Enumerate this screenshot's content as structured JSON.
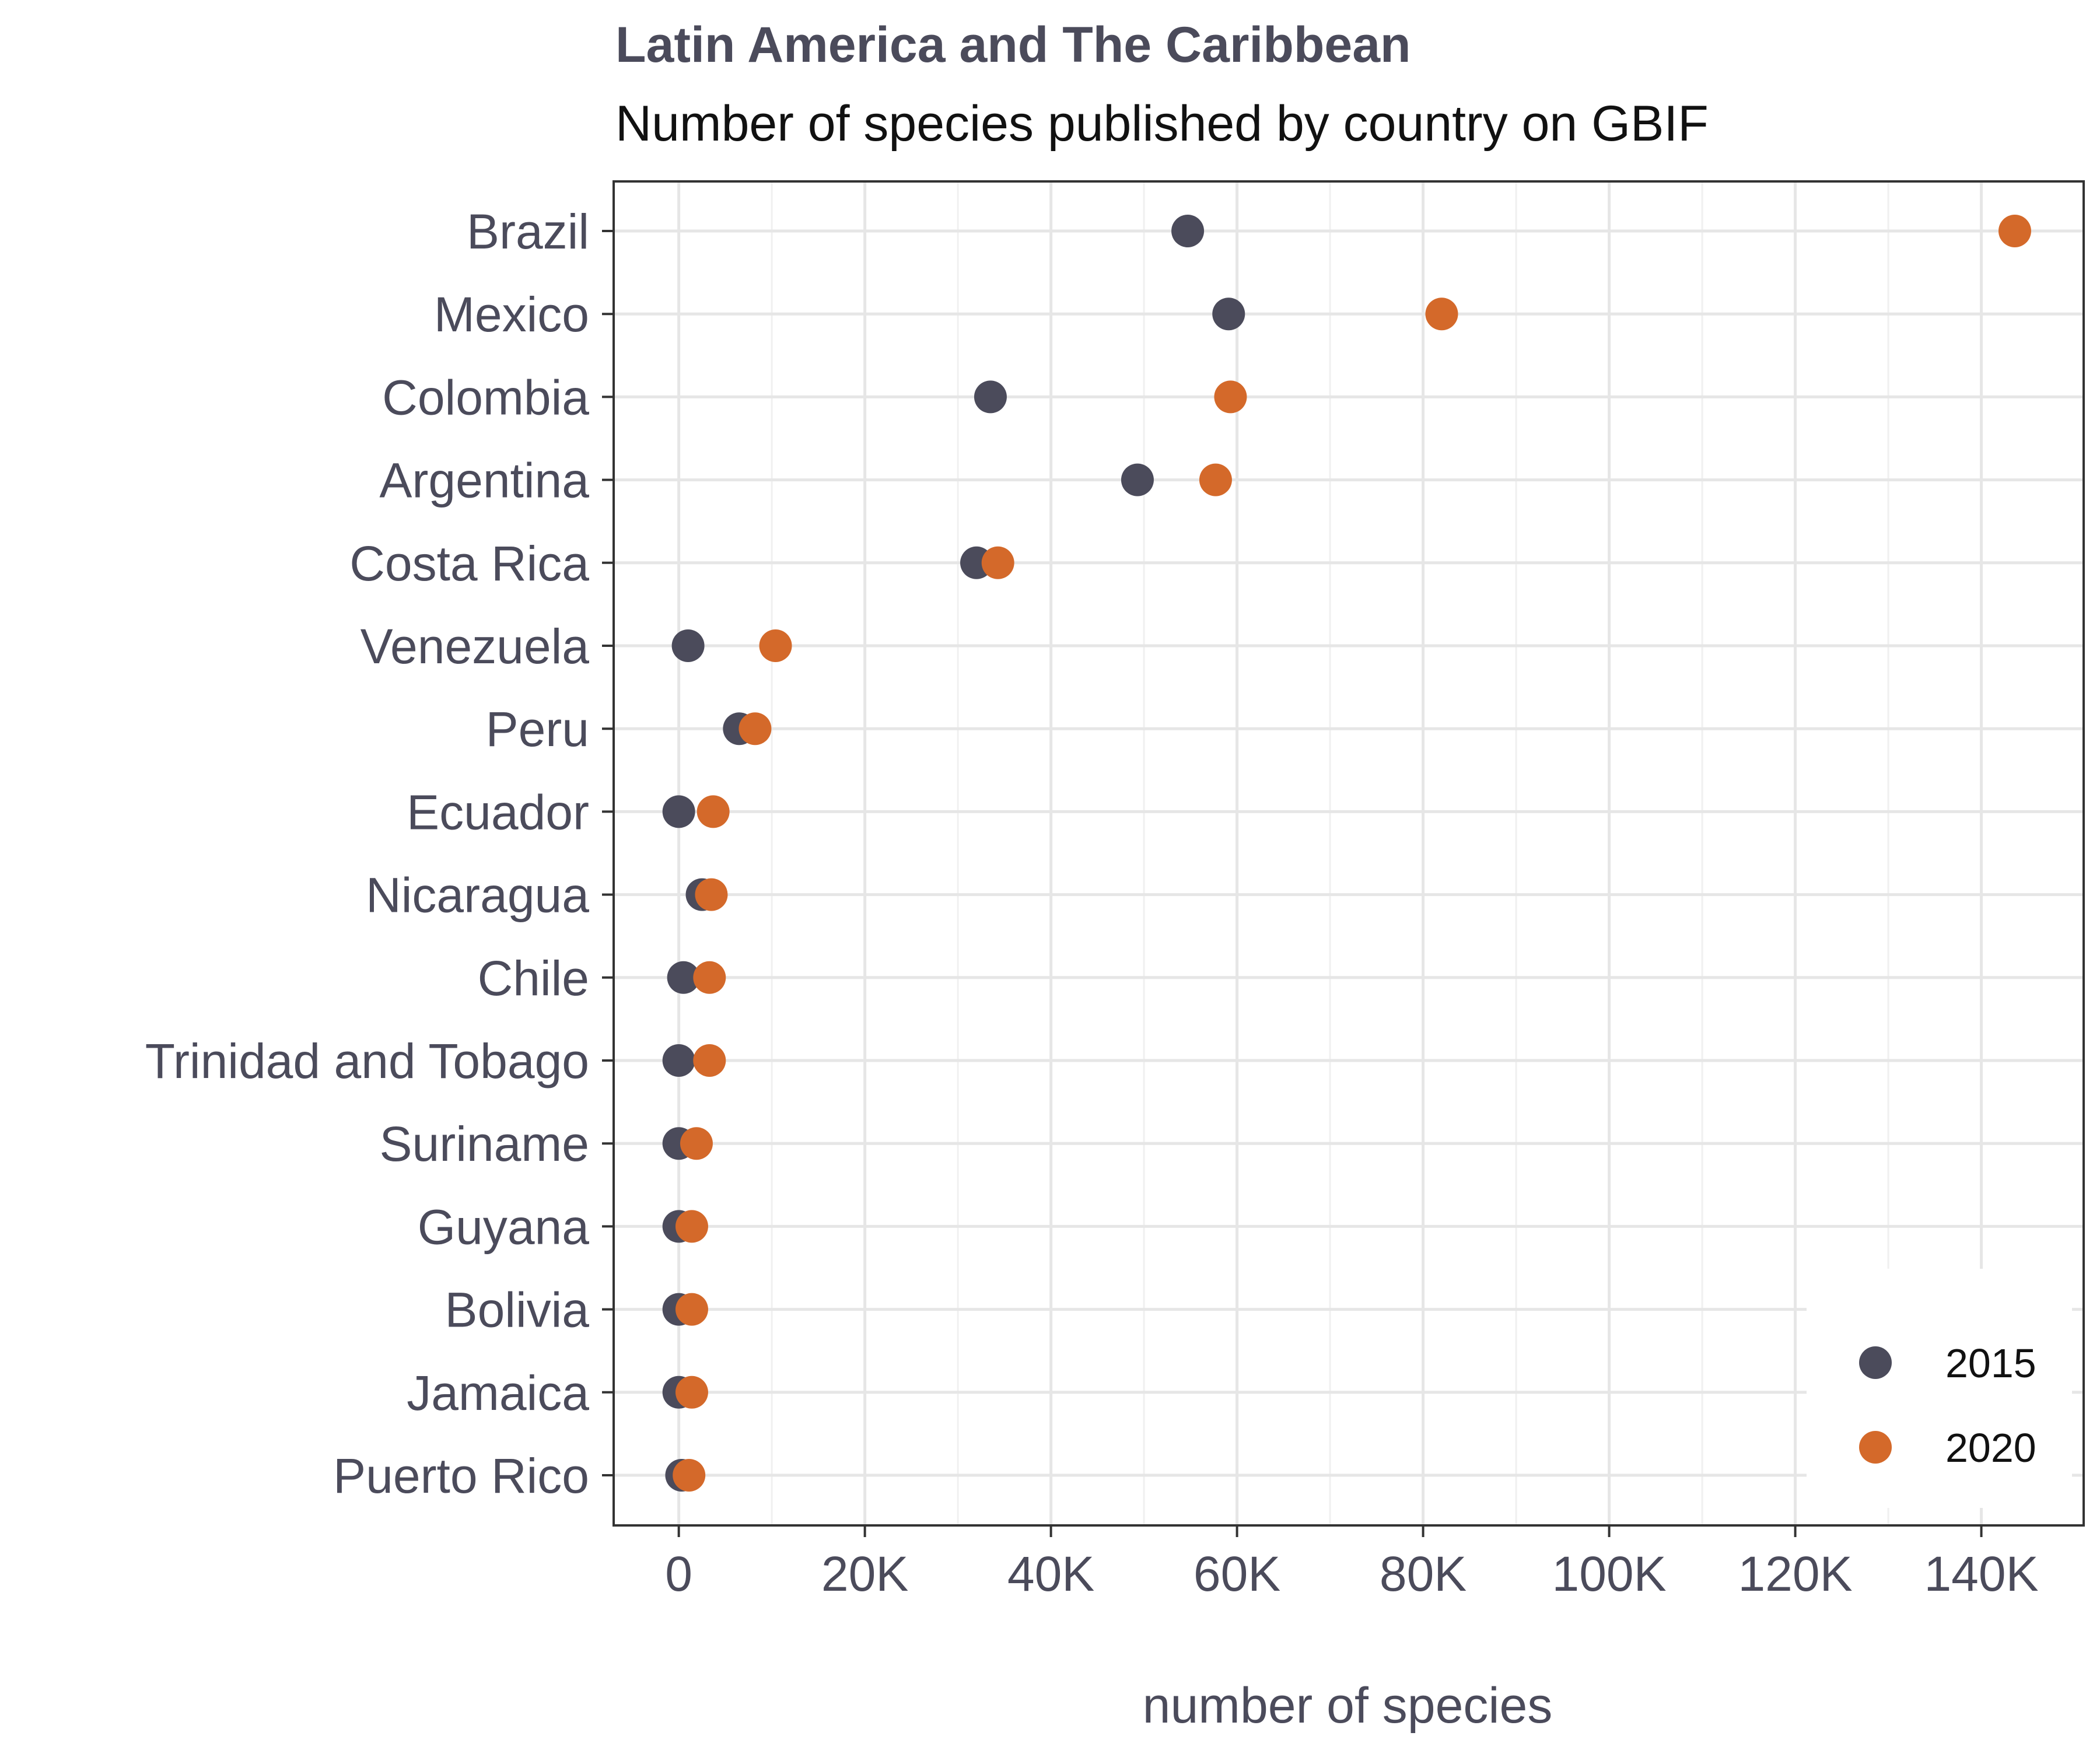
{
  "chart_data": {
    "type": "scatter",
    "title": "Latin America and The Caribbean",
    "subtitle": "Number of species published by country on GBIF",
    "xlabel": "number of species",
    "ylabel": "",
    "xlim": [
      -7000,
      151000
    ],
    "x_ticks": [
      0,
      20000,
      40000,
      60000,
      80000,
      100000,
      120000,
      140000
    ],
    "x_tick_labels": [
      "0",
      "20K",
      "40K",
      "60K",
      "80K",
      "100K",
      "120K",
      "140K"
    ],
    "categories": [
      "Brazil",
      "Mexico",
      "Colombia",
      "Argentina",
      "Costa Rica",
      "Venezuela",
      "Peru",
      "Ecuador",
      "Nicaragua",
      "Chile",
      "Trinidad and Tobago",
      "Suriname",
      "Guyana",
      "Bolivia",
      "Jamaica",
      "Puerto Rico"
    ],
    "series": [
      {
        "name": "2015",
        "color": "#4b4b5b",
        "values": [
          54700,
          59100,
          33500,
          49300,
          32000,
          1000,
          6500,
          0,
          2500,
          500,
          0,
          0,
          0,
          0,
          0,
          300
        ]
      },
      {
        "name": "2020",
        "color": "#d4692a",
        "values": [
          143600,
          82000,
          59300,
          57700,
          34300,
          10400,
          8200,
          3700,
          3500,
          3300,
          3300,
          1900,
          1400,
          1400,
          1400,
          1100
        ]
      }
    ],
    "grid": true,
    "legend_position": "bottom-right"
  }
}
